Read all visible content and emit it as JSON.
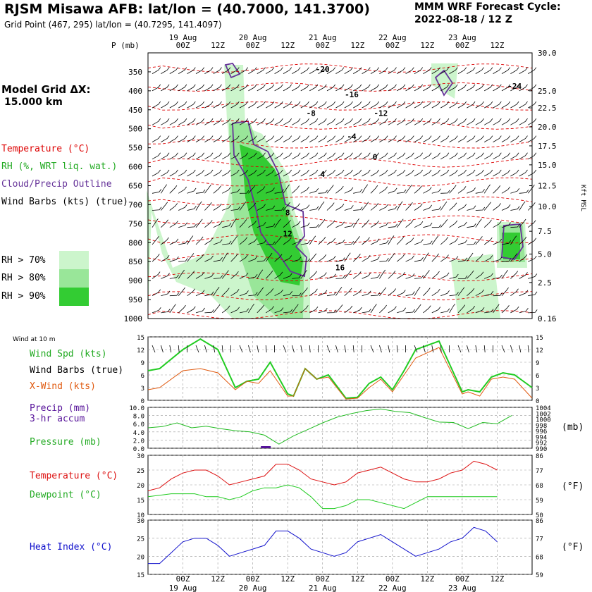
{
  "header": {
    "title": "RJSM Misawa AFB:  lat/lon = (40.7000, 141.3700)",
    "subtitle": "Grid Point (467, 295) lat/lon = (40.7295, 141.4097)",
    "cycle_line1": "MMM WRF Forecast Cycle:",
    "cycle_line2": "2022-08-18 / 12  Z",
    "grid_line1": "Model Grid ΔX:",
    "grid_line2": "15.000 km"
  },
  "legend": {
    "temperature": "Temperature (°C)",
    "rh": "RH (%, WRT liq. wat.)",
    "cloud": "Cloud/Precip Outline",
    "barbs": "Wind Barbs (kts) (true)",
    "rh70": "RH > 70%",
    "rh80": "RH > 80%",
    "rh90": "RH > 90%",
    "wind10m": "Wind at 10 m",
    "windspd": "Wind Spd (kts)",
    "windbarbs": "Wind Barbs (true)",
    "xwind": "X-Wind (kts)",
    "precip1": "Precip (mm)",
    "precip2": "3-hr accum",
    "pressure": "Pressure (mb)",
    "temp2": "Temperature (°C)",
    "dewpoint": "Dewpoint (°C)",
    "heatindex": "Heat Index (°C)",
    "p_axis": "P (mb)",
    "kft": "Kft MSL",
    "mb_unit": "(mb)",
    "f_unit1": "(°F)",
    "f_unit2": "(°F)"
  },
  "colors": {
    "temperature": "#dd0000",
    "rh70": "#ccf5cc",
    "rh80": "#99e699",
    "rh90": "#33cc33",
    "cloud": "#663399",
    "windspd": "#22cc22",
    "xwind": "#e05a10",
    "pressure": "#22bb22",
    "temp2": "#dd1111",
    "dewpoint": "#22cc22",
    "heatindex": "#1111cc",
    "precip": "#551199"
  },
  "chart_data": [
    {
      "type": "heatmap",
      "name": "cross-section",
      "xticks": [
        "00Z",
        "12Z",
        "00Z",
        "12Z",
        "00Z",
        "12Z",
        "00Z",
        "12Z",
        "00Z",
        "12Z"
      ],
      "xticks_hours": [
        12,
        24,
        36,
        48,
        60,
        72,
        84,
        96,
        108,
        120
      ],
      "days": [
        "19 Aug",
        "20 Aug",
        "21 Aug",
        "22 Aug",
        "23 Aug"
      ],
      "days_hours": [
        12,
        36,
        60,
        84,
        108
      ],
      "pressure_ticks": [
        350,
        400,
        450,
        500,
        550,
        600,
        650,
        700,
        750,
        800,
        850,
        900,
        950,
        1000
      ],
      "kft_ticks": [
        "30.0",
        "25.0",
        "22.5",
        "20.0",
        "17.5",
        "15.0",
        "12.5",
        "10.0",
        "7.5",
        "5.0",
        "2.5",
        "0.16"
      ],
      "kft_pressure": [
        300,
        400,
        445,
        495,
        545,
        595,
        650,
        705,
        770,
        830,
        905,
        1000
      ],
      "temperature_labels": [
        {
          "text": "-20",
          "t": 30,
          "p": 350
        },
        {
          "text": "-24",
          "t": 63,
          "p": 395
        },
        {
          "text": "-16",
          "t": 35,
          "p": 417
        },
        {
          "text": "-8",
          "t": 28,
          "p": 466
        },
        {
          "text": "-12",
          "t": 40,
          "p": 466
        },
        {
          "text": "-4",
          "t": 35,
          "p": 527
        },
        {
          "text": "0",
          "t": 39,
          "p": 581
        },
        {
          "text": "4",
          "t": 30,
          "p": 627
        },
        {
          "text": "8",
          "t": 24,
          "p": 728
        },
        {
          "text": "12",
          "t": 24,
          "p": 784
        },
        {
          "text": "16",
          "t": 33,
          "p": 873
        }
      ]
    },
    {
      "type": "line",
      "name": "wind",
      "ylim": [
        0,
        15
      ],
      "yticks": [
        0,
        3,
        6,
        9,
        12,
        15
      ],
      "x_hours": [
        0,
        6,
        12,
        18,
        24,
        30,
        36,
        42,
        48,
        54,
        60,
        66,
        72,
        78,
        84,
        90,
        96,
        102,
        108,
        114,
        120
      ],
      "series": [
        {
          "name": "Wind Spd (kts)",
          "values": [
            7,
            7.5,
            12,
            14.5,
            12,
            3,
            4.5,
            5,
            9,
            1.5,
            1,
            7.5,
            5,
            6,
            0.5,
            0.7,
            4,
            5.5,
            2.5,
            7,
            12,
            14,
            8,
            2,
            2.5,
            2,
            5.5,
            6.5,
            6,
            3
          ]
        },
        {
          "name": "X-Wind (kts)",
          "values": [
            2.5,
            3,
            7,
            7.5,
            6.5,
            2.5,
            4.5,
            4,
            7,
            1,
            1,
            7.5,
            5,
            5.5,
            0.3,
            0.5,
            3,
            5,
            2,
            6,
            10,
            12.5,
            7,
            1.5,
            2,
            1,
            5,
            5.5,
            5,
            0.5
          ]
        }
      ],
      "x_points": [
        0,
        4,
        12,
        18,
        24,
        30,
        34,
        38,
        42,
        48,
        50,
        54,
        58,
        62,
        68,
        72,
        76,
        80,
        84,
        88,
        92,
        100,
        104,
        108,
        110,
        114,
        118,
        122,
        126,
        132
      ]
    },
    {
      "type": "line",
      "name": "pressure",
      "ylim": [
        0,
        10
      ],
      "yticks": [
        0.0,
        2.0,
        4.0,
        6.0,
        8.0,
        10.0
      ],
      "right_ticks": [
        990,
        992,
        994,
        996,
        998,
        1000,
        1002,
        1004
      ],
      "series": [
        {
          "name": "Pressure (mb)",
          "values": [
            5.0,
            5.3,
            6.2,
            5.0,
            5.4,
            4.8,
            4.3,
            4.0,
            3.2,
            1.0,
            3.0,
            4.6,
            6.2,
            7.6,
            8.5,
            9.2,
            9.6,
            9.0,
            8.7,
            7.5,
            6.4,
            6.3,
            4.8,
            6.3,
            6.0,
            8.0
          ]
        },
        {
          "name": "Precip (mm)",
          "values": [
            0,
            0,
            0,
            0,
            0,
            0,
            0,
            0,
            0.3,
            0,
            0,
            0,
            0,
            0,
            0,
            0,
            0,
            0,
            0,
            0,
            0,
            0,
            0,
            0,
            0,
            0
          ]
        }
      ],
      "x_points": [
        0,
        5,
        10,
        15,
        20,
        25,
        30,
        35,
        40,
        45,
        50,
        55,
        60,
        65,
        70,
        75,
        80,
        85,
        90,
        95,
        100,
        105,
        110,
        115,
        120,
        125
      ]
    },
    {
      "type": "line",
      "name": "temperature",
      "ylim": [
        10,
        30
      ],
      "yticks": [
        10,
        15,
        20,
        25,
        30
      ],
      "right_ticks": [
        50,
        59,
        68,
        77,
        86
      ],
      "series": [
        {
          "name": "Temperature (°C)",
          "values": [
            18,
            19,
            22,
            24,
            25,
            25,
            23,
            20,
            21,
            22,
            23,
            27,
            27,
            25,
            22,
            21,
            20,
            21,
            24,
            25,
            26,
            24,
            22,
            21,
            21,
            22,
            24,
            25,
            28,
            27,
            25
          ]
        },
        {
          "name": "Dewpoint (°C)",
          "values": [
            16,
            16.5,
            17,
            17,
            17,
            16,
            16,
            15,
            16,
            18,
            19,
            19,
            20,
            19,
            16,
            12,
            12,
            13,
            15,
            15,
            14,
            13,
            12,
            14,
            16,
            16,
            16,
            16,
            16,
            16,
            16
          ]
        }
      ],
      "x_points": [
        0,
        4,
        8,
        12,
        16,
        20,
        24,
        28,
        32,
        36,
        40,
        44,
        48,
        52,
        56,
        60,
        64,
        68,
        72,
        76,
        80,
        84,
        88,
        92,
        96,
        100,
        104,
        108,
        112,
        116,
        120
      ]
    },
    {
      "type": "line",
      "name": "heat index",
      "ylim": [
        15,
        30
      ],
      "yticks": [
        15,
        20,
        25,
        30
      ],
      "right_ticks": [
        59,
        68,
        77,
        86
      ],
      "series": [
        {
          "name": "Heat Index (°C)",
          "values": [
            18,
            18,
            21,
            24,
            25,
            25,
            23,
            20,
            21,
            22,
            23,
            27,
            27,
            25,
            22,
            21,
            20,
            21,
            24,
            25,
            26,
            24,
            22,
            20,
            21,
            22,
            24,
            25,
            28,
            27,
            24
          ]
        }
      ],
      "x_points": [
        0,
        4,
        8,
        12,
        16,
        20,
        24,
        28,
        32,
        36,
        40,
        44,
        48,
        52,
        56,
        60,
        64,
        68,
        72,
        76,
        80,
        84,
        88,
        92,
        96,
        100,
        104,
        108,
        112,
        116,
        120
      ]
    }
  ]
}
